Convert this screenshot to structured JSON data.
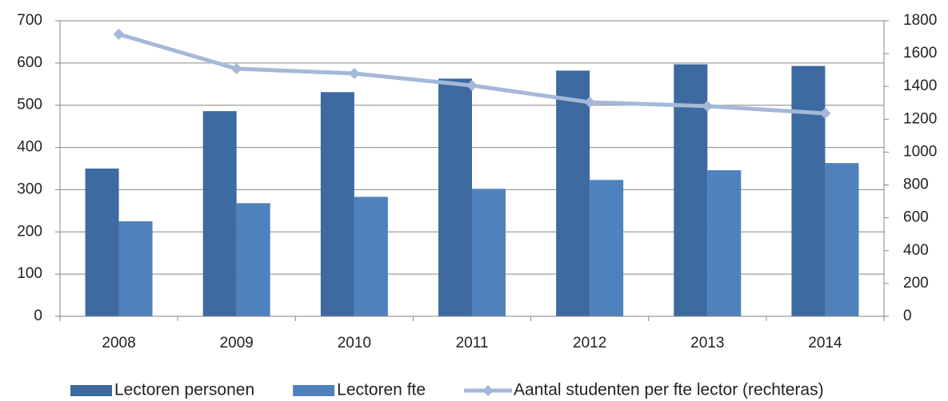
{
  "chart_data": {
    "type": "bar",
    "categories": [
      "2008",
      "2009",
      "2010",
      "2011",
      "2012",
      "2013",
      "2014"
    ],
    "series": [
      {
        "name": "Lectoren personen",
        "type": "bar",
        "color": "#3d6aa0",
        "values": [
          350,
          486,
          531,
          563,
          582,
          597,
          593
        ]
      },
      {
        "name": "Lectoren fte",
        "type": "bar",
        "color": "#4f81bd",
        "values": [
          225,
          268,
          283,
          302,
          323,
          346,
          363
        ]
      },
      {
        "name": "Aantal studenten per fte lector (rechteras)",
        "type": "line",
        "axis": "y2",
        "color": "#a5b8d8",
        "values": [
          1718,
          1508,
          1479,
          1406,
          1304,
          1280,
          1236
        ]
      }
    ],
    "ylim": [
      0,
      700
    ],
    "yticks": [
      0,
      100,
      200,
      300,
      400,
      500,
      600,
      700
    ],
    "y2lim": [
      0,
      1800
    ],
    "y2ticks": [
      0,
      200,
      400,
      600,
      800,
      1000,
      1200,
      1400,
      1600,
      1800
    ],
    "grid": true,
    "legend": "bottom"
  }
}
